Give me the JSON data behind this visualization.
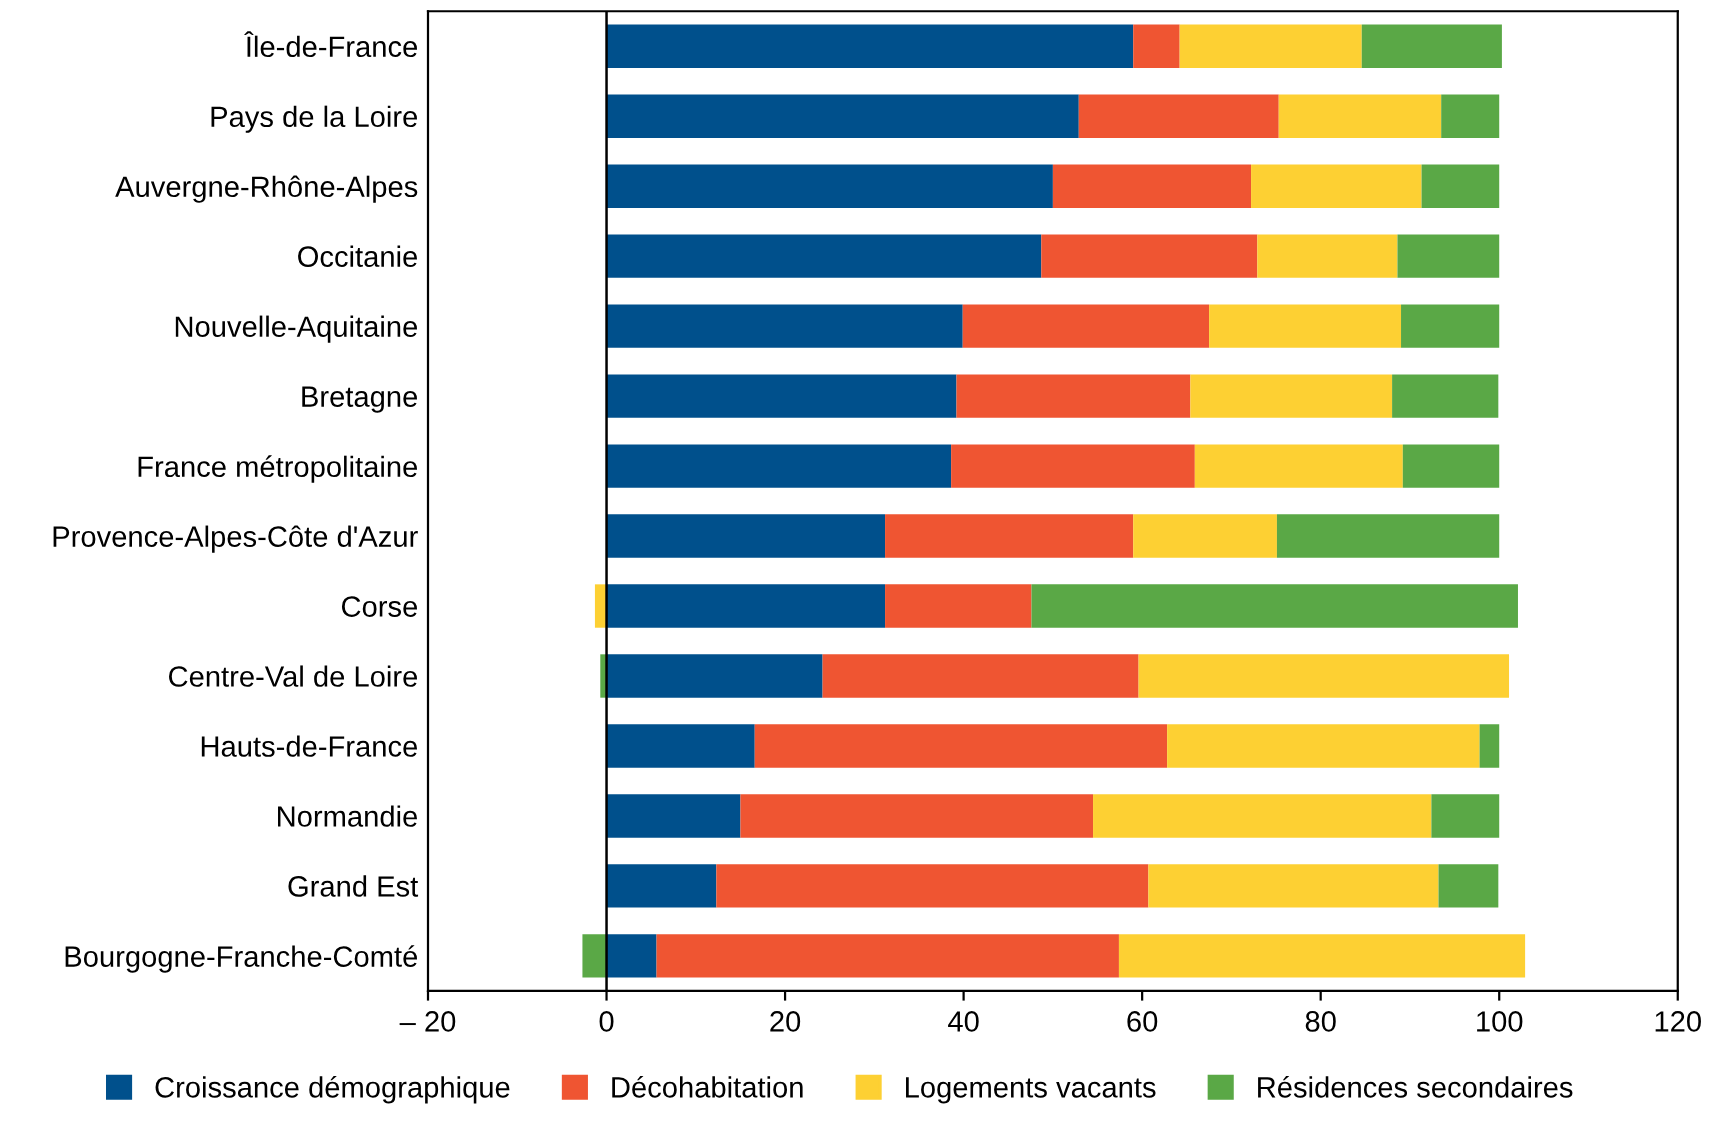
{
  "chart_data": {
    "type": "bar",
    "orientation": "horizontal",
    "stacked": true,
    "categories": [
      "Île-de-France",
      "Pays de la Loire",
      "Auvergne-Rhône-Alpes",
      "Occitanie",
      "Nouvelle-Aquitaine",
      "Bretagne",
      "France métropolitaine",
      "Provence-Alpes-Côte d'Azur",
      "Corse",
      "Centre-Val de Loire",
      "Hauts-de-France",
      "Normandie",
      "Grand Est",
      "Bourgogne-Franche-Comté"
    ],
    "series": [
      {
        "name": "Croissance démographique",
        "color": "#00508c",
        "values": [
          59.0,
          52.9,
          50.0,
          48.7,
          39.9,
          39.2,
          38.6,
          31.2,
          31.2,
          24.2,
          16.6,
          15.0,
          12.3,
          5.6
        ]
      },
      {
        "name": "Décohabitation",
        "color": "#ef5532",
        "values": [
          5.2,
          22.4,
          22.2,
          24.2,
          27.6,
          26.2,
          27.3,
          27.8,
          16.4,
          35.4,
          46.2,
          39.5,
          48.4,
          51.8
        ]
      },
      {
        "name": "Logements vacants",
        "color": "#fdd033",
        "values": [
          20.4,
          18.2,
          19.1,
          15.7,
          21.5,
          22.6,
          23.3,
          16.1,
          -1.3,
          41.5,
          35.0,
          37.9,
          32.5,
          45.5
        ]
      },
      {
        "name": "Résidences secondaires",
        "color": "#5aa846",
        "values": [
          15.7,
          6.5,
          8.7,
          11.4,
          11.0,
          11.9,
          10.8,
          24.9,
          54.5,
          -0.7,
          2.2,
          7.6,
          6.7,
          -2.7
        ]
      }
    ],
    "xlim": [
      -20,
      120
    ],
    "xticks": [
      {
        "value": -20,
        "label": "– 20"
      },
      0,
      20,
      40,
      60,
      80,
      100,
      120
    ],
    "ref_lines": [
      {
        "axis": "x",
        "value": 0,
        "color": "#000000"
      }
    ],
    "grid": false,
    "legend": "bottom"
  }
}
